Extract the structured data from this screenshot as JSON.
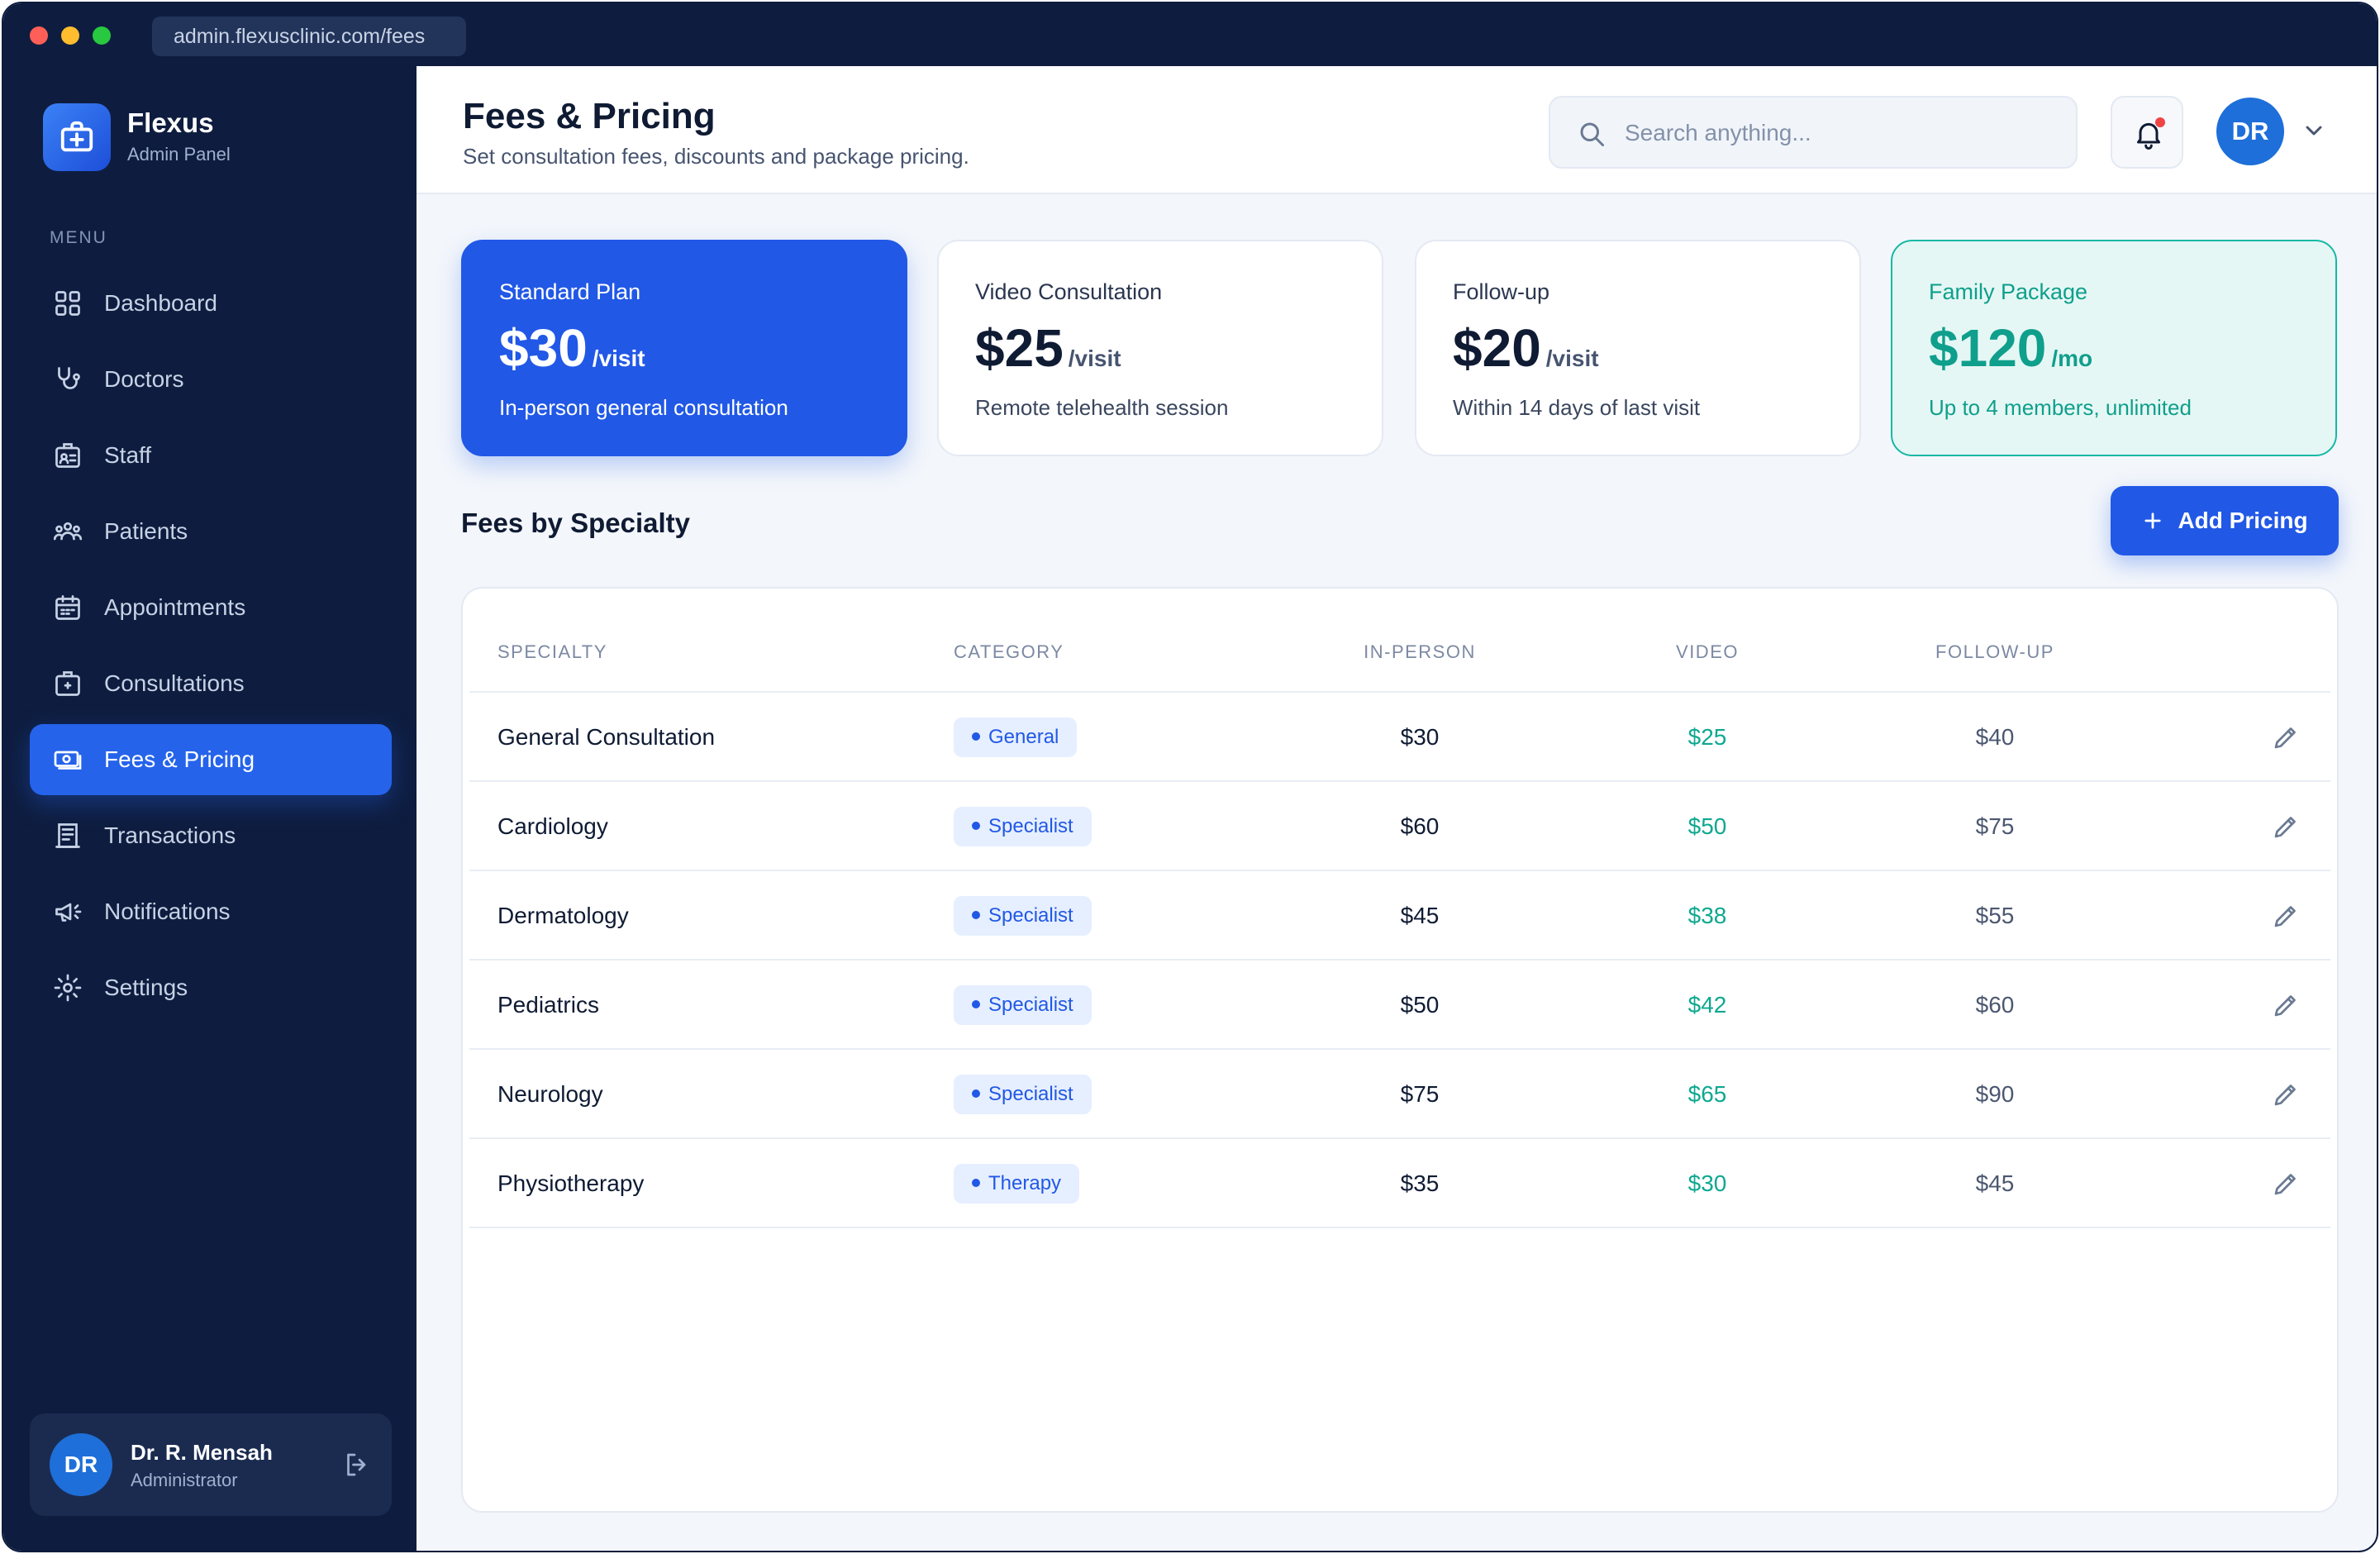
{
  "browser": {
    "url": "admin.flexusclinic.com/fees"
  },
  "brand": {
    "name": "Flexus",
    "subtitle": "Admin Panel"
  },
  "sidebar": {
    "menu_label": "MENU",
    "items": [
      {
        "label": "Dashboard",
        "icon": "grid-icon"
      },
      {
        "label": "Doctors",
        "icon": "stethoscope-icon"
      },
      {
        "label": "Staff",
        "icon": "id-badge-icon"
      },
      {
        "label": "Patients",
        "icon": "users-icon"
      },
      {
        "label": "Appointments",
        "icon": "calendar-icon"
      },
      {
        "label": "Consultations",
        "icon": "medical-case-icon"
      },
      {
        "label": "Fees & Pricing",
        "icon": "money-icon",
        "active": true
      },
      {
        "label": "Transactions",
        "icon": "receipt-icon"
      },
      {
        "label": "Notifications",
        "icon": "megaphone-icon"
      },
      {
        "label": "Settings",
        "icon": "gear-icon"
      }
    ],
    "user": {
      "initials": "DR",
      "name": "Dr. R. Mensah",
      "role": "Administrator"
    }
  },
  "header": {
    "title": "Fees & Pricing",
    "subtitle": "Set consultation fees, discounts and package pricing.",
    "search_placeholder": "Search anything...",
    "avatar_initials": "DR"
  },
  "cards": [
    {
      "title": "Standard Plan",
      "price": "$30",
      "unit": "/visit",
      "desc": "In-person general consultation"
    },
    {
      "title": "Video Consultation",
      "price": "$25",
      "unit": "/visit",
      "desc": "Remote telehealth session"
    },
    {
      "title": "Follow-up",
      "price": "$20",
      "unit": "/visit",
      "desc": "Within 14 days of last visit"
    },
    {
      "title": "Family Package",
      "price": "$120",
      "unit": "/mo",
      "desc": "Up to 4 members, unlimited"
    }
  ],
  "section": {
    "title": "Fees by Specialty",
    "add_button": "Add Pricing"
  },
  "table": {
    "columns": [
      "SPECIALTY",
      "CATEGORY",
      "IN-PERSON",
      "VIDEO",
      "FOLLOW-UP"
    ],
    "rows": [
      {
        "specialty": "General Consultation",
        "category": "General",
        "in_person": "$30",
        "video": "$25",
        "follow_up": "$40"
      },
      {
        "specialty": "Cardiology",
        "category": "Specialist",
        "in_person": "$60",
        "video": "$50",
        "follow_up": "$75"
      },
      {
        "specialty": "Dermatology",
        "category": "Specialist",
        "in_person": "$45",
        "video": "$38",
        "follow_up": "$55"
      },
      {
        "specialty": "Pediatrics",
        "category": "Specialist",
        "in_person": "$50",
        "video": "$42",
        "follow_up": "$60"
      },
      {
        "specialty": "Neurology",
        "category": "Specialist",
        "in_person": "$75",
        "video": "$65",
        "follow_up": "$90"
      },
      {
        "specialty": "Physiotherapy",
        "category": "Therapy",
        "in_person": "$35",
        "video": "$30",
        "follow_up": "$45"
      }
    ]
  },
  "colors": {
    "accent": "#2158e6",
    "sidebar": "#0e1d3f",
    "teal": "#0f9f8c"
  }
}
